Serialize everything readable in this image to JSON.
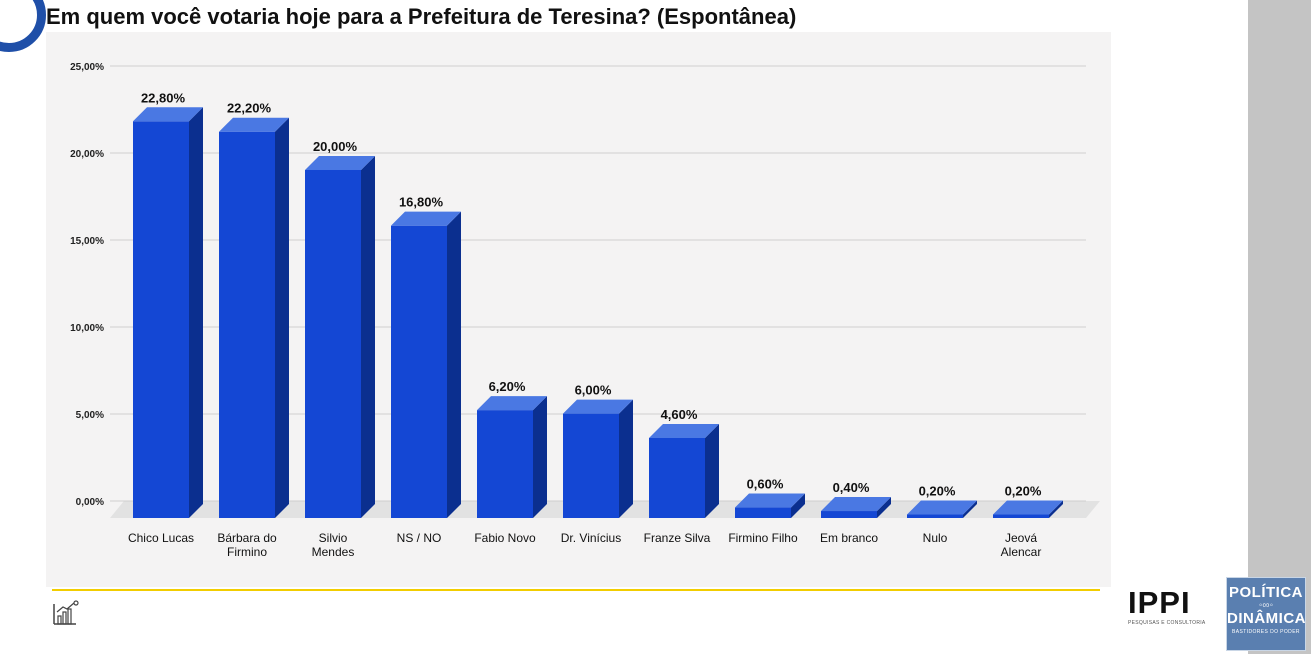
{
  "title": "Em quem você votaria hoje para a Prefeitura de Teresina? (Espontânea)",
  "chart_data": {
    "type": "bar",
    "title": "Em quem você votaria hoje para a Prefeitura de Teresina? (Espontânea)",
    "categories": [
      [
        "Chico Lucas"
      ],
      [
        "Bárbara do",
        "Firmino"
      ],
      [
        "Silvio",
        "Mendes"
      ],
      [
        "NS / NO"
      ],
      [
        "Fabio Novo"
      ],
      [
        "Dr. Vinícius"
      ],
      [
        "Franze Silva"
      ],
      [
        "Firmino Filho"
      ],
      [
        "Em branco"
      ],
      [
        "Nulo"
      ],
      [
        "Jeová",
        "Alencar"
      ]
    ],
    "values": [
      22.8,
      22.2,
      20.0,
      16.8,
      6.2,
      6.0,
      4.6,
      0.6,
      0.4,
      0.2,
      0.2
    ],
    "value_labels": [
      "22,80%",
      "22,20%",
      "20,00%",
      "16,80%",
      "6,20%",
      "6,00%",
      "4,60%",
      "0,60%",
      "0,40%",
      "0,20%",
      "0,20%"
    ],
    "y_ticks": [
      0,
      5,
      10,
      15,
      20,
      25
    ],
    "y_tick_labels": [
      "0,00%",
      "5,00%",
      "10,00%",
      "15,00%",
      "20,00%",
      "25,00%"
    ],
    "ylim": [
      0,
      25
    ],
    "grid": true,
    "legend": "none",
    "colors": {
      "bar_front": "#1447d4",
      "bar_side": "#0b2f8f",
      "bar_top": "#4a78e3",
      "grid": "#cfcfcf",
      "floor": "#e2e2e2"
    }
  },
  "branding": {
    "ippi_name": "IPPI",
    "ippi_sub": "PESQUISAS E CONSULTORIA",
    "pd_line1": "POLÍTICA",
    "pd_line2": "DINÂMICA",
    "pd_line3": "BASTIDORES DO PODER"
  },
  "colors": {
    "accent_ring": "#1f4fa8",
    "yellow_line": "#f2cd00",
    "side_band": "#c4c4c4"
  }
}
